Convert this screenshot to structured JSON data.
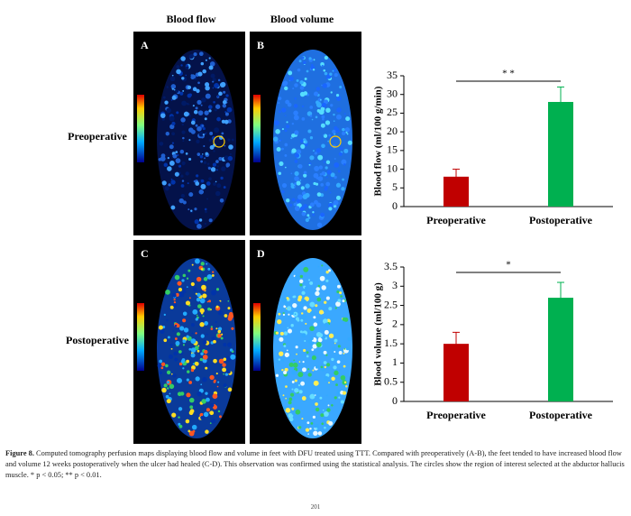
{
  "figure": {
    "column_labels": [
      "Blood flow",
      "Blood volume"
    ],
    "row_labels": [
      "Preoperative",
      "Postoperative"
    ],
    "panel_letters": [
      "A",
      "B",
      "C",
      "D"
    ],
    "caption_label": "Figure 8.",
    "caption": "Computed tomography perfusion maps displaying blood flow and volume in feet with DFU treated using TTT. Compared with preoperatively (A-B), the feet tended to have increased blood flow and volume 12 weeks postoperatively when the ulcer had healed (C-D). This observation was confirmed using the statistical analysis. The circles show the region of interest selected at the abductor hallucis muscle. * p < 0.05; ** p < 0.01.",
    "page_number": "201"
  },
  "chart_data": [
    {
      "type": "bar",
      "y_label": "Blood flow (ml/100 g/min)",
      "categories": [
        "Preoperative",
        "Postoperative"
      ],
      "values": [
        8,
        28
      ],
      "errors": [
        2,
        4
      ],
      "colors": [
        "#c00000",
        "#00b050"
      ],
      "ylim": [
        0,
        35
      ],
      "yticks": [
        0,
        5,
        10,
        15,
        20,
        25,
        30,
        35
      ],
      "annotation": "* *"
    },
    {
      "type": "bar",
      "y_label": "Blood volume (ml/100 g)",
      "categories": [
        "Preoperative",
        "Postoperative"
      ],
      "values": [
        1.5,
        2.7
      ],
      "errors": [
        0.3,
        0.4
      ],
      "colors": [
        "#c00000",
        "#00b050"
      ],
      "ylim": [
        0,
        3.5
      ],
      "yticks": [
        0,
        0.5,
        1,
        1.5,
        2,
        2.5,
        3,
        3.5
      ],
      "annotation": "*"
    }
  ]
}
